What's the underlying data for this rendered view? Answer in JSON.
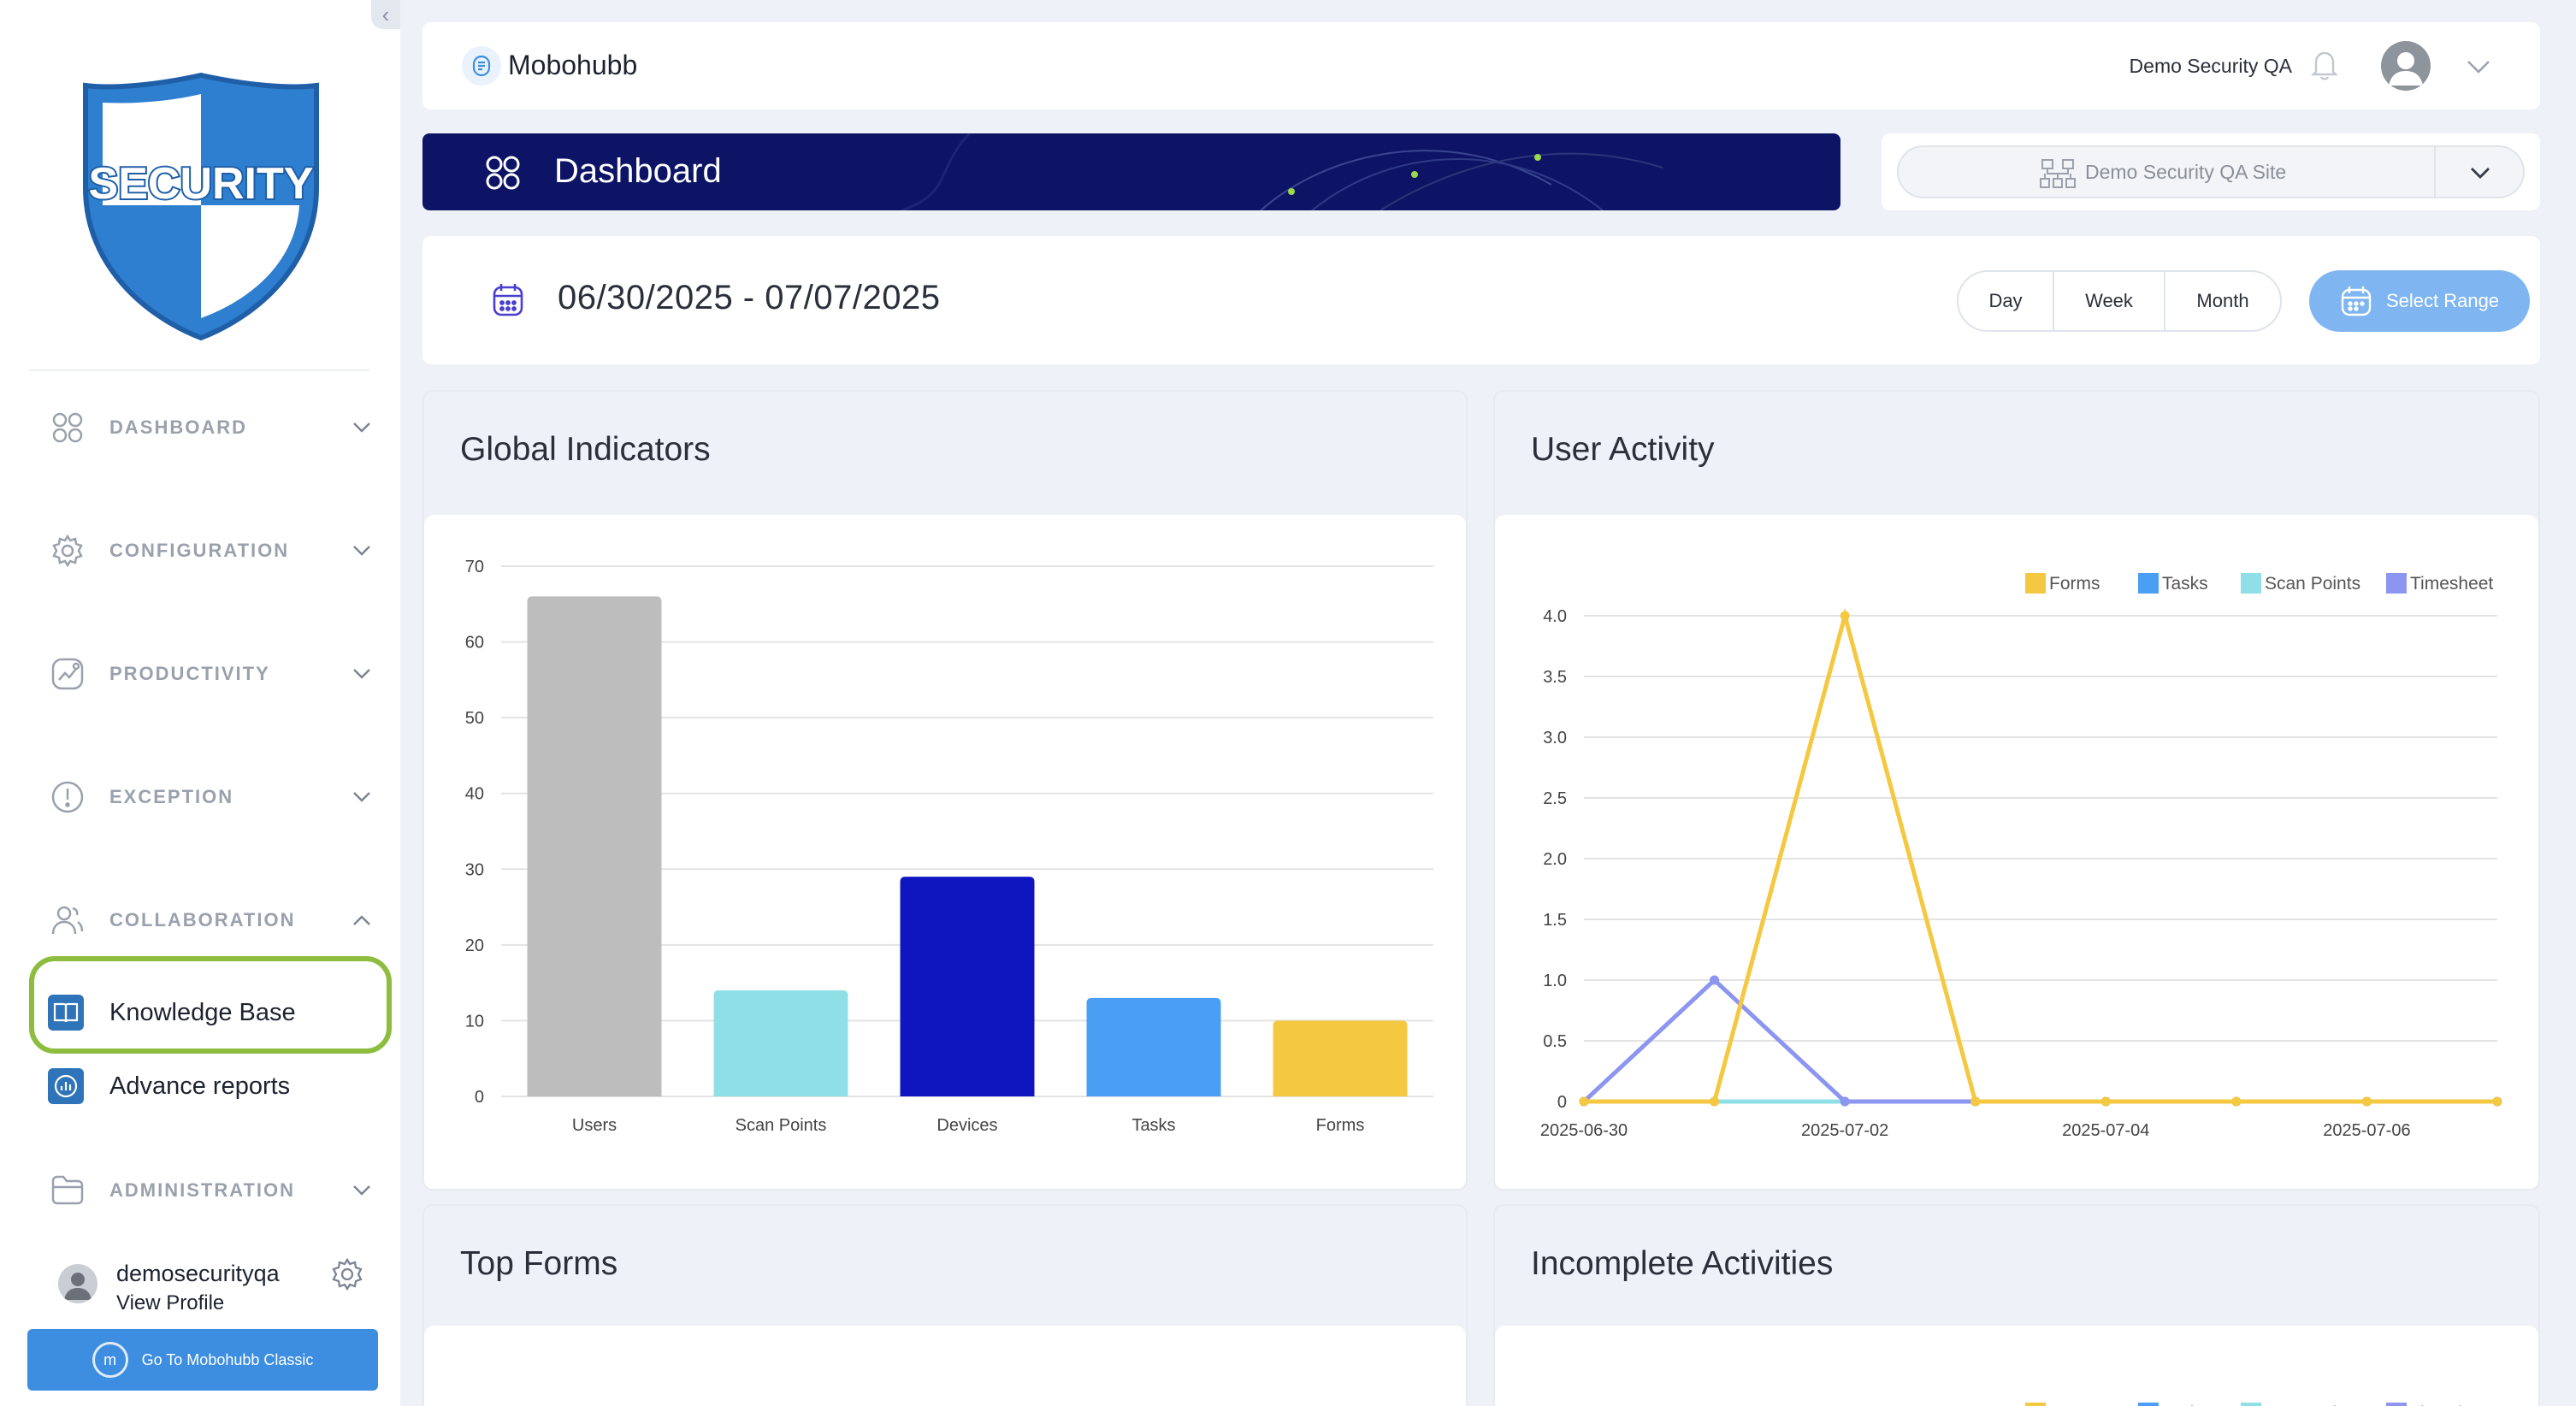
{
  "sidebar": {
    "logo_text": "SECURITY",
    "nav": [
      {
        "label": "DASHBOARD",
        "icon": "dashboard-grid-icon",
        "expanded": false
      },
      {
        "label": "CONFIGURATION",
        "icon": "gear-icon",
        "expanded": false
      },
      {
        "label": "PRODUCTIVITY",
        "icon": "chart-trend-icon",
        "expanded": false
      },
      {
        "label": "EXCEPTION",
        "icon": "alert-circle-icon",
        "expanded": false
      },
      {
        "label": "COLLABORATION",
        "icon": "users-icon",
        "expanded": true
      },
      {
        "label": "ADMINISTRATION",
        "icon": "folder-icon",
        "expanded": false
      }
    ],
    "collaboration_items": [
      {
        "label": "Knowledge Base",
        "icon": "book-icon",
        "highlighted": true
      },
      {
        "label": "Advance reports",
        "icon": "report-icon",
        "highlighted": false
      }
    ],
    "profile": {
      "username": "demosecurityqa",
      "link": "View Profile"
    },
    "classic_button": "Go To Mobohubb Classic"
  },
  "header": {
    "app_name": "Mobohubb",
    "account_name": "Demo Security QA"
  },
  "banner": {
    "title": "Dashboard"
  },
  "site_select": {
    "value": "Demo Security QA Site"
  },
  "date_filter": {
    "range": "06/30/2025 - 07/07/2025",
    "periods": [
      "Day",
      "Week",
      "Month"
    ],
    "select_range": "Select Range"
  },
  "cards": {
    "global_indicators": "Global Indicators",
    "user_activity": "User Activity",
    "top_forms": "Top Forms",
    "incomplete_activities": "Incomplete Activities"
  },
  "colors": {
    "accent": "#3d8de0",
    "highlight": "#8cbd3e",
    "banner": "#0d1466",
    "forms": "#f5c842",
    "tasks": "#4a9ff5",
    "scan_points": "#8fe0e6",
    "timesheet": "#8c96f0",
    "users_bar": "#bdbdbd",
    "devices_bar": "#0f16c0"
  },
  "chart_data": [
    {
      "type": "bar",
      "categories": [
        "Users",
        "Scan Points",
        "Devices",
        "Tasks",
        "Forms"
      ],
      "values": [
        66,
        14,
        29,
        13,
        10
      ],
      "bar_colors": [
        "#bdbdbd",
        "#8fe0e6",
        "#0f16c0",
        "#4a9ff5",
        "#f5c842"
      ],
      "yticks": [
        "0",
        "10",
        "20",
        "30",
        "40",
        "50",
        "60",
        "70"
      ],
      "ylim": [
        0,
        70
      ],
      "grid": true
    },
    {
      "type": "line",
      "x": [
        "2025-06-30",
        "2025-07-01",
        "2025-07-02",
        "2025-07-03",
        "2025-07-04",
        "2025-07-05",
        "2025-07-06",
        "2025-07-07"
      ],
      "xticks": [
        "2025-06-30",
        "2025-07-02",
        "2025-07-04",
        "2025-07-06"
      ],
      "yticks": [
        "0",
        "0.5",
        "1.0",
        "1.5",
        "2.0",
        "2.5",
        "3.0",
        "3.5",
        "4.0"
      ],
      "ylim": [
        0,
        4
      ],
      "legend": "top-right",
      "series": [
        {
          "name": "Forms",
          "color": "#f5c842",
          "values": [
            0,
            0,
            4,
            0,
            0,
            0,
            0,
            0
          ]
        },
        {
          "name": "Tasks",
          "color": "#4a9ff5",
          "values": [
            0,
            0,
            0,
            0,
            0,
            0,
            0,
            0
          ]
        },
        {
          "name": "Scan Points",
          "color": "#8fe0e6",
          "values": [
            0,
            0,
            0,
            0,
            0,
            0,
            0,
            0
          ]
        },
        {
          "name": "Timesheet",
          "color": "#8c96f0",
          "values": [
            0,
            1,
            0,
            0,
            0,
            0,
            0,
            0
          ]
        }
      ]
    }
  ],
  "incomplete_legend": [
    "Forms",
    "Tasks",
    "Scan Points",
    "Timesheet"
  ]
}
